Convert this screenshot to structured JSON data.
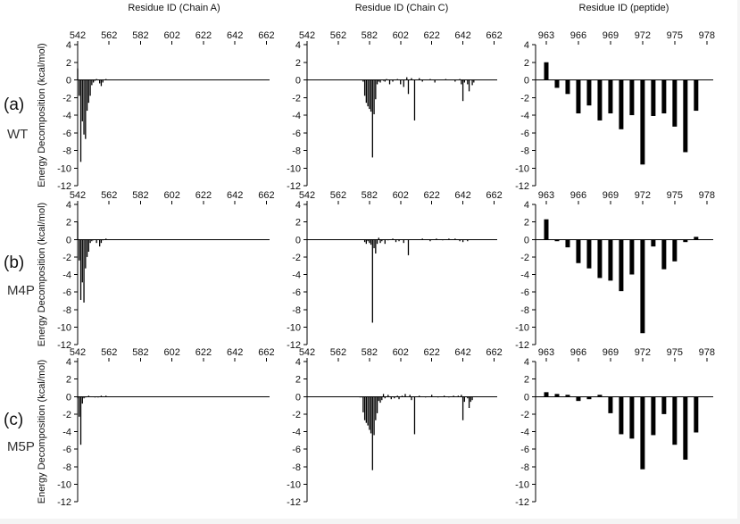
{
  "figure": {
    "panel_labels": [
      {
        "letter": "(a)",
        "variant": "WT"
      },
      {
        "letter": "(b)",
        "variant": "M4P"
      },
      {
        "letter": "(c)",
        "variant": "M5P"
      }
    ],
    "y_title": "Energy Decomposition (kcal/mol)",
    "column_titles": [
      "Residue ID (Chain A)",
      "Residue ID (Chain C)",
      "Residue ID (peptide)"
    ]
  },
  "chart_data": {
    "type": "bar",
    "ylim": [
      -12,
      4
    ],
    "yticks": [
      4,
      2,
      0,
      -2,
      -4,
      -6,
      -8,
      -10,
      -12
    ],
    "columns": [
      {
        "xlabel": "Residue ID (Chain A)",
        "xlim": [
          542,
          664
        ],
        "xticks": [
          542,
          562,
          582,
          602,
          622,
          642,
          662
        ]
      },
      {
        "xlabel": "Residue ID (Chain C)",
        "xlim": [
          542,
          664
        ],
        "xticks": [
          542,
          562,
          582,
          602,
          622,
          642,
          662
        ]
      },
      {
        "xlabel": "Residue ID (peptide)",
        "xlim": [
          962,
          978.6
        ],
        "xticks": [
          963,
          966,
          969,
          972,
          975,
          978
        ]
      }
    ],
    "rows": [
      {
        "name": "WT",
        "chainA": {
          "x": [
            542,
            543,
            544,
            545,
            546,
            547,
            548,
            549,
            550,
            551,
            552,
            553,
            554,
            556,
            557,
            558,
            560
          ],
          "values": [
            1.3,
            -1.8,
            -9.3,
            -4.7,
            -6.2,
            -6.7,
            -3.5,
            -2.6,
            -1.8,
            -0.6,
            -0.3,
            -0.1,
            0.1,
            -0.4,
            -0.7,
            -0.3,
            0.1
          ]
        },
        "chainC": {
          "x": [
            578,
            579,
            580,
            581,
            582,
            583,
            584,
            585,
            586,
            587,
            588,
            589,
            591,
            592,
            593,
            595,
            597,
            600,
            602,
            604,
            606,
            607,
            609,
            611,
            614,
            616,
            621,
            624,
            631,
            637,
            640,
            641,
            642,
            643,
            645,
            646,
            648,
            649
          ],
          "values": [
            -0.2,
            -1.8,
            -2.6,
            -3.0,
            -3.3,
            -3.6,
            -8.8,
            -3.9,
            -2.2,
            -0.5,
            -0.2,
            -0.3,
            -0.1,
            -0.2,
            0.1,
            -0.5,
            -0.2,
            0.1,
            -0.5,
            -0.8,
            0.3,
            -1.6,
            0.2,
            -4.6,
            0.2,
            -0.2,
            0.1,
            -0.3,
            0.1,
            -0.2,
            0.1,
            -0.5,
            -2.4,
            -0.3,
            -0.5,
            -1.3,
            -0.6,
            -0.3
          ]
        },
        "peptide": {
          "x": [
            963,
            964,
            965,
            966,
            967,
            968,
            969,
            970,
            971,
            972,
            973,
            974,
            975,
            976,
            977
          ],
          "values": [
            2.0,
            -0.9,
            -1.6,
            -3.8,
            -2.9,
            -4.6,
            -3.8,
            -5.6,
            -4.0,
            -9.6,
            -4.1,
            -3.8,
            -5.3,
            -8.2,
            -3.5
          ]
        }
      },
      {
        "name": "M4P",
        "chainA": {
          "x": [
            542,
            543,
            544,
            545,
            546,
            547,
            548,
            549,
            550,
            551,
            552,
            554,
            556,
            557,
            558,
            560
          ],
          "values": [
            2.0,
            -2.4,
            -6.9,
            -4.9,
            -7.2,
            -3.3,
            -2.0,
            -1.4,
            -0.4,
            -0.2,
            -0.1,
            -0.4,
            -0.8,
            -0.4,
            -0.1,
            0.1
          ]
        },
        "chainC": {
          "x": [
            579,
            580,
            581,
            582,
            583,
            584,
            585,
            586,
            587,
            588,
            589,
            590,
            592,
            594,
            597,
            599,
            601,
            604,
            607,
            616,
            621,
            625,
            629,
            633,
            637,
            640,
            642,
            645
          ],
          "values": [
            -0.3,
            -0.5,
            -0.2,
            -0.4,
            -0.6,
            -9.5,
            -1.0,
            -1.6,
            -0.5,
            0.2,
            -0.4,
            -0.2,
            -0.5,
            -0.1,
            0.1,
            -0.3,
            -0.2,
            -0.4,
            -1.8,
            0.1,
            -0.2,
            0.1,
            -0.1,
            0.1,
            0.1,
            -0.2,
            -0.3,
            -0.2
          ]
        },
        "peptide": {
          "x": [
            963,
            964,
            965,
            966,
            967,
            968,
            969,
            970,
            971,
            972,
            973,
            974,
            975,
            976,
            977
          ],
          "values": [
            2.3,
            -0.2,
            -0.9,
            -2.7,
            -3.3,
            -4.4,
            -4.7,
            -5.9,
            -4.0,
            -10.7,
            -0.8,
            -3.4,
            -2.5,
            -0.3,
            0.3
          ]
        }
      },
      {
        "name": "M5P",
        "chainA": {
          "x": [
            542,
            543,
            544,
            545,
            546,
            547,
            549,
            553,
            555,
            557,
            560
          ],
          "values": [
            -0.2,
            -2.3,
            -5.5,
            -0.8,
            -0.2,
            -0.1,
            0.1,
            -0.1,
            -0.1,
            0.1,
            0.1
          ]
        },
        "chainC": {
          "x": [
            576,
            577,
            578,
            579,
            580,
            581,
            582,
            583,
            584,
            585,
            586,
            587,
            588,
            589,
            590,
            591,
            592,
            594,
            596,
            598,
            600,
            601,
            603,
            605,
            608,
            609,
            611,
            614,
            618,
            622,
            626,
            630,
            633,
            636,
            639,
            641,
            642,
            643,
            645,
            646,
            647,
            648
          ],
          "values": [
            -0.1,
            -0.1,
            -1.8,
            -2.7,
            -3.0,
            -3.3,
            -3.8,
            -4.2,
            -8.4,
            -4.4,
            -2.7,
            -1.9,
            -0.5,
            -0.7,
            -0.4,
            0.3,
            -0.2,
            0.2,
            -0.3,
            -0.2,
            0.1,
            -0.3,
            0.1,
            0.3,
            0.2,
            -0.4,
            -4.3,
            0.1,
            -0.1,
            0.2,
            -0.1,
            0.1,
            -0.1,
            0.1,
            0.1,
            0.2,
            -2.7,
            -0.6,
            -0.2,
            -1.3,
            -0.6,
            -0.4
          ]
        },
        "peptide": {
          "x": [
            963,
            964,
            965,
            966,
            967,
            968,
            969,
            970,
            971,
            972,
            973,
            974,
            975,
            976,
            977
          ],
          "values": [
            0.5,
            0.3,
            0.2,
            -0.5,
            -0.3,
            0.2,
            -1.9,
            -4.3,
            -4.8,
            -8.3,
            -4.4,
            -2.0,
            -5.5,
            -7.2,
            -4.1
          ]
        }
      }
    ]
  }
}
